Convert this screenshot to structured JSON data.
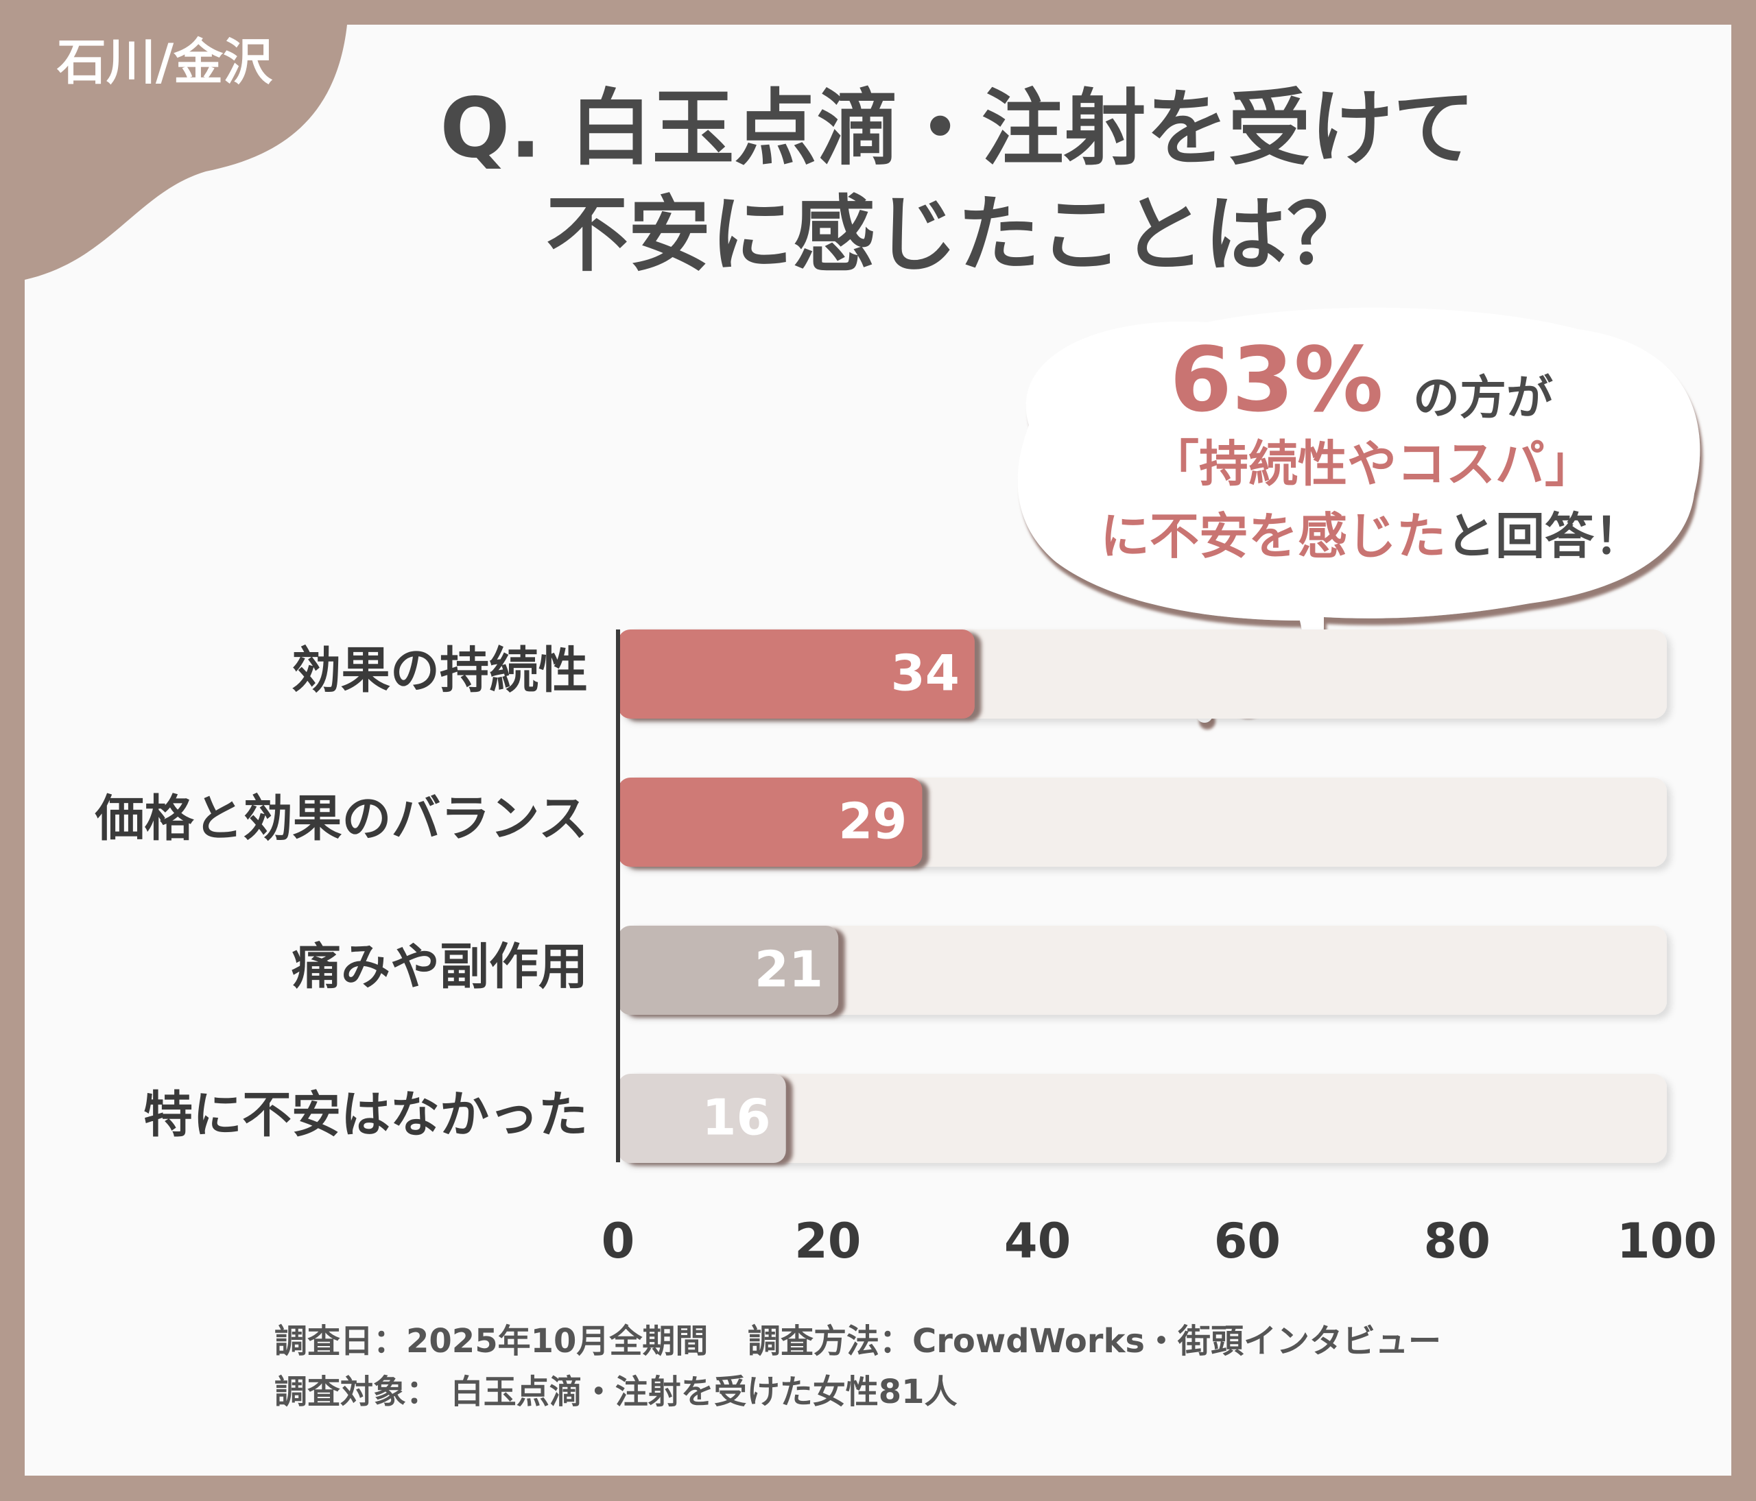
{
  "chart_data": {
    "type": "bar",
    "orientation": "horizontal",
    "badge": "石川/金沢",
    "title": [
      "Q. 白玉点滴・注射を受けて",
      "不安に感じたことは？"
    ],
    "callout": {
      "highlight": "63%",
      "lead": "の方が",
      "line2": "「持続性やコスパ」",
      "line3_colored": "に不安を感じた",
      "line3_rest": "と回答！"
    },
    "categories": [
      "効果の持続性",
      "価格と効果のバランス",
      "痛みや副作用",
      "特に不安はなかった"
    ],
    "values": [
      34,
      29,
      21,
      16
    ],
    "colors": [
      "#cf7a76",
      "#cf7a76",
      "#c2b8b4",
      "#dcd5d3"
    ],
    "xlim": [
      0,
      100
    ],
    "xticks": [
      0,
      20,
      40,
      60,
      80,
      100
    ],
    "notes": [
      "調査日：2025年10月全期間",
      "調査方法：CrowdWorks・街頭インタビュー",
      "調査対象： 白玉点滴・注射を受けた女性81人"
    ]
  }
}
